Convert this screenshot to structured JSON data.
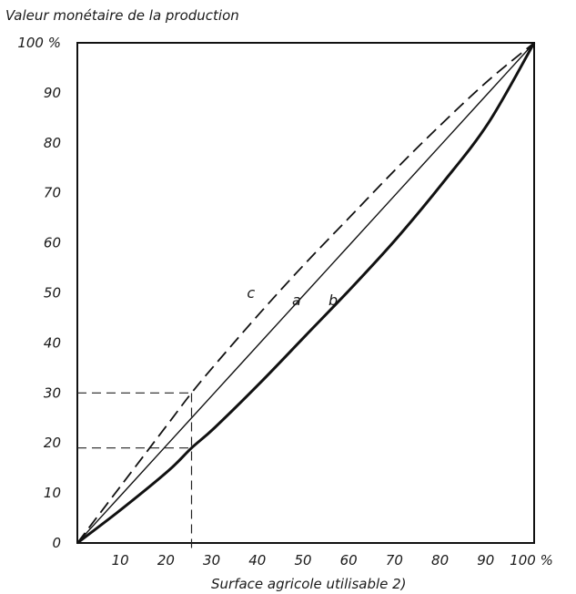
{
  "chart_data": {
    "type": "line",
    "title": "Valeur monétaire de la production",
    "ylabel": "Valeur monétaire de la production",
    "xlabel": "Surface agricole utilisable 2)",
    "xlim": [
      0,
      100
    ],
    "ylim": [
      0,
      100
    ],
    "x_ticks": [
      "10",
      "20",
      "30",
      "40",
      "50",
      "60",
      "70",
      "80",
      "90",
      "100 %"
    ],
    "x_tick_values": [
      10,
      20,
      30,
      40,
      50,
      60,
      70,
      80,
      90,
      100
    ],
    "y_ticks": [
      "0",
      "10",
      "20",
      "30",
      "40",
      "50",
      "60",
      "70",
      "80",
      "90",
      "100 %"
    ],
    "y_tick_values": [
      0,
      10,
      20,
      30,
      40,
      50,
      60,
      70,
      80,
      90,
      100
    ],
    "grid": false,
    "series": [
      {
        "name": "a",
        "style": "solid-thin",
        "x": [
          0,
          10,
          20,
          30,
          40,
          50,
          60,
          70,
          80,
          90,
          100
        ],
        "y": [
          0,
          10,
          20,
          30,
          40,
          50,
          60,
          70,
          80,
          90,
          100
        ]
      },
      {
        "name": "b",
        "style": "solid-thick",
        "x": [
          0,
          10,
          20,
          25,
          30,
          40,
          50,
          60,
          70,
          80,
          90,
          100
        ],
        "y": [
          0,
          7,
          14.5,
          19,
          23,
          32,
          41.5,
          51,
          61,
          72,
          84,
          100
        ]
      },
      {
        "name": "c",
        "style": "dashed",
        "x": [
          0,
          10,
          20,
          25,
          30,
          40,
          50,
          60,
          70,
          80,
          90,
          100
        ],
        "y": [
          0,
          12,
          24,
          30,
          35.5,
          46,
          56,
          65.5,
          75,
          84,
          92.5,
          100
        ]
      }
    ],
    "reference_lines": [
      {
        "from": [
          0,
          30
        ],
        "to": [
          25,
          30
        ]
      },
      {
        "from": [
          0,
          19
        ],
        "to": [
          25,
          19
        ]
      },
      {
        "from": [
          25,
          -1
        ],
        "to": [
          25,
          30
        ]
      }
    ],
    "curve_labels": [
      {
        "text": "c",
        "x": 38,
        "y": 49
      },
      {
        "text": "a",
        "x": 48,
        "y": 47.5
      },
      {
        "text": "b",
        "x": 56,
        "y": 47.5
      }
    ]
  }
}
